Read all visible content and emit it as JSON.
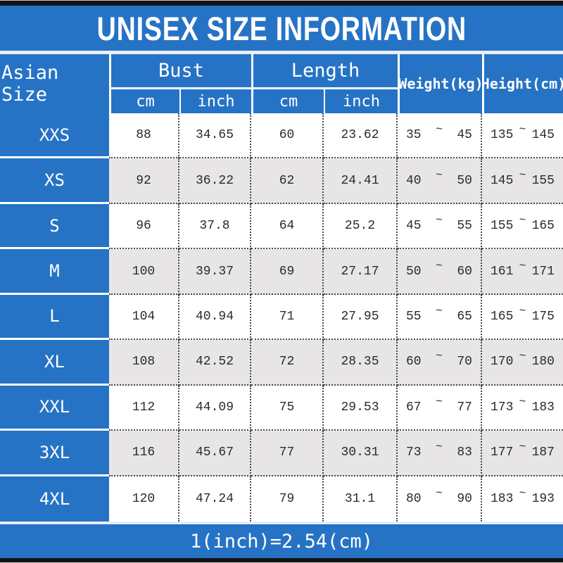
{
  "title": "UNISEX SIZE INFORMATION",
  "footer_note": "1(inch)=2.54(cm)",
  "range_separator": "~",
  "header": {
    "size": "Asian Size",
    "bust": "Bust",
    "length": "Length",
    "weight": "Weight(kg)",
    "height": "Height(cm)",
    "cm": "cm",
    "inch": "inch"
  },
  "rows": [
    {
      "size": "XXS",
      "bust_cm": "88",
      "bust_inch": "34.65",
      "length_cm": "60",
      "length_inch": "23.62",
      "weight_min": "35",
      "weight_max": "45",
      "height_min": "135",
      "height_max": "145"
    },
    {
      "size": "XS",
      "bust_cm": "92",
      "bust_inch": "36.22",
      "length_cm": "62",
      "length_inch": "24.41",
      "weight_min": "40",
      "weight_max": "50",
      "height_min": "145",
      "height_max": "155"
    },
    {
      "size": "S",
      "bust_cm": "96",
      "bust_inch": "37.8",
      "length_cm": "64",
      "length_inch": "25.2",
      "weight_min": "45",
      "weight_max": "55",
      "height_min": "155",
      "height_max": "165"
    },
    {
      "size": "M",
      "bust_cm": "100",
      "bust_inch": "39.37",
      "length_cm": "69",
      "length_inch": "27.17",
      "weight_min": "50",
      "weight_max": "60",
      "height_min": "161",
      "height_max": "171"
    },
    {
      "size": "L",
      "bust_cm": "104",
      "bust_inch": "40.94",
      "length_cm": "71",
      "length_inch": "27.95",
      "weight_min": "55",
      "weight_max": "65",
      "height_min": "165",
      "height_max": "175"
    },
    {
      "size": "XL",
      "bust_cm": "108",
      "bust_inch": "42.52",
      "length_cm": "72",
      "length_inch": "28.35",
      "weight_min": "60",
      "weight_max": "70",
      "height_min": "170",
      "height_max": "180"
    },
    {
      "size": "XXL",
      "bust_cm": "112",
      "bust_inch": "44.09",
      "length_cm": "75",
      "length_inch": "29.53",
      "weight_min": "67",
      "weight_max": "77",
      "height_min": "173",
      "height_max": "183"
    },
    {
      "size": "3XL",
      "bust_cm": "116",
      "bust_inch": "45.67",
      "length_cm": "77",
      "length_inch": "30.31",
      "weight_min": "73",
      "weight_max": "83",
      "height_min": "177",
      "height_max": "187"
    },
    {
      "size": "4XL",
      "bust_cm": "120",
      "bust_inch": "47.24",
      "length_cm": "79",
      "length_inch": "31.1",
      "weight_min": "80",
      "weight_max": "90",
      "height_min": "183",
      "height_max": "193"
    }
  ],
  "colors": {
    "blue": "#2673c5",
    "alt_row": "#e7e5e6",
    "row": "#ffffff",
    "text": "#2b2b2b",
    "header_text": "#ffffff"
  }
}
